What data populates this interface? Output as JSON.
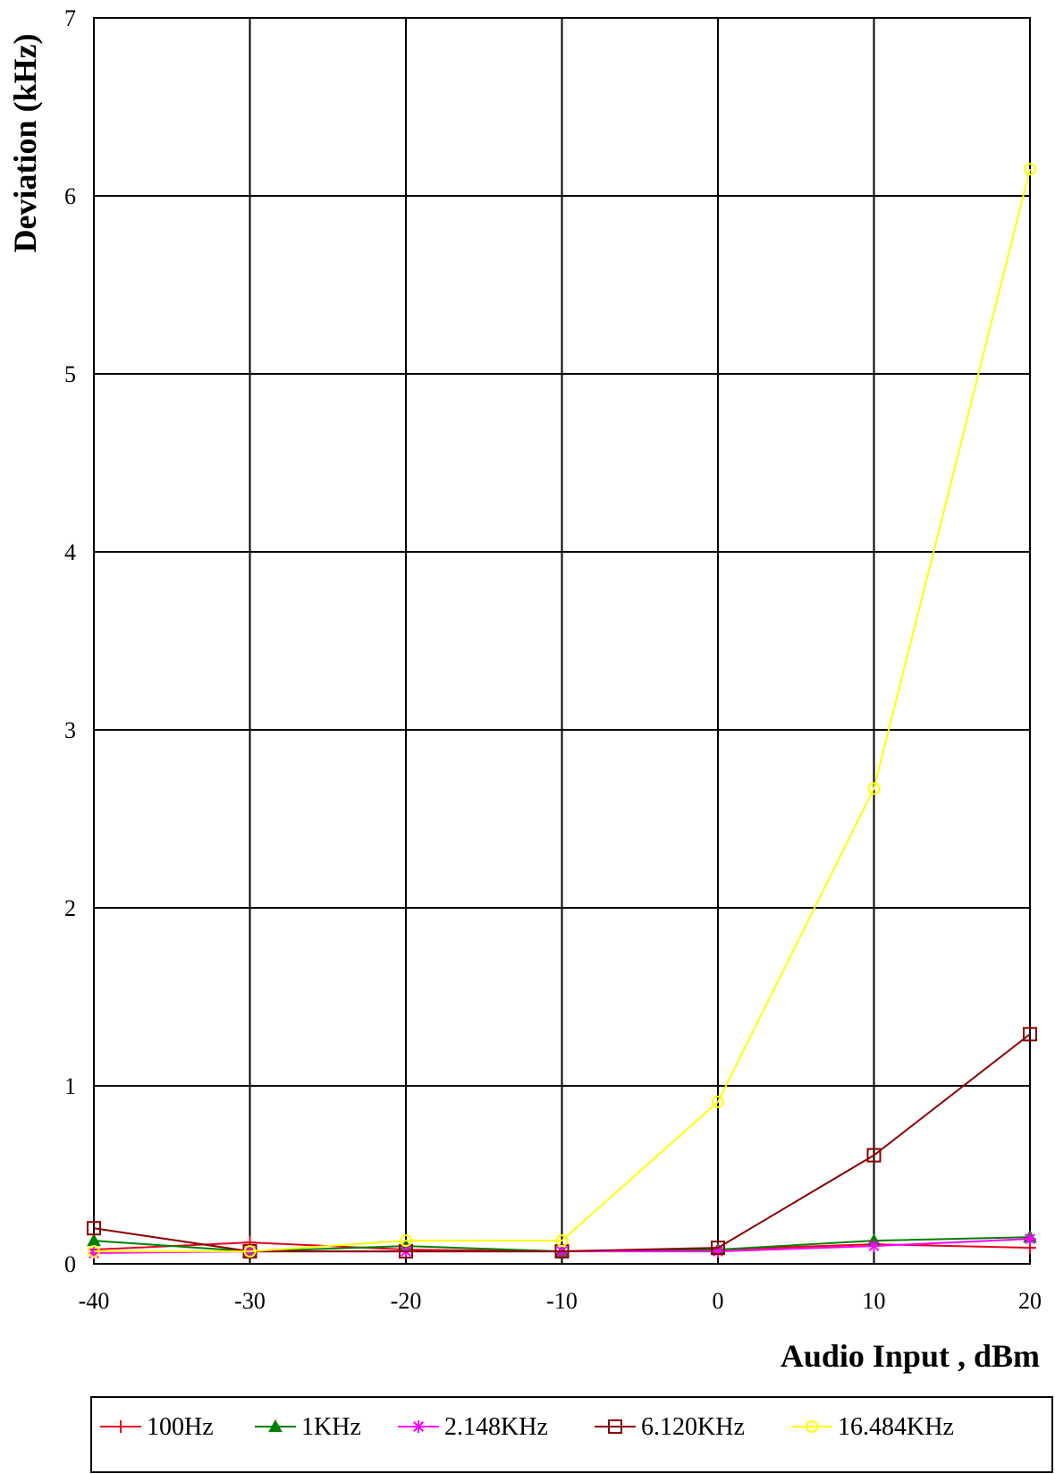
{
  "chart_data": {
    "type": "line",
    "title": "",
    "xlabel": "Audio Input , dBm",
    "ylabel": "Deviation (kHz)",
    "x": [
      -40,
      -30,
      -20,
      -10,
      0,
      10,
      20
    ],
    "xlim": [
      -40,
      20
    ],
    "ylim": [
      0,
      7
    ],
    "xticks": [
      "-40",
      "-30",
      "-20",
      "-10",
      "0",
      "10",
      "20"
    ],
    "yticks": [
      "0",
      "1",
      "2",
      "3",
      "4",
      "5",
      "6",
      "7"
    ],
    "grid": true,
    "legend": "bottom",
    "series": [
      {
        "name": "100Hz",
        "color": "#e8001c",
        "marker": "plus",
        "values": [
          0.08,
          0.12,
          0.08,
          0.07,
          0.08,
          0.11,
          0.09
        ]
      },
      {
        "name": "1KHz",
        "color": "#008000",
        "marker": "triangle",
        "values": [
          0.13,
          0.07,
          0.1,
          0.07,
          0.08,
          0.13,
          0.15
        ]
      },
      {
        "name": "2.148KHz",
        "color": "#ff00ff",
        "marker": "asterisk",
        "values": [
          0.06,
          0.07,
          0.07,
          0.07,
          0.07,
          0.1,
          0.14
        ]
      },
      {
        "name": "6.120KHz",
        "color": "#8b0000",
        "marker": "square",
        "values": [
          0.2,
          0.07,
          0.07,
          0.07,
          0.09,
          0.61,
          1.29
        ]
      },
      {
        "name": "16.484KHz",
        "color": "#ffff00",
        "marker": "circle",
        "values": [
          0.07,
          0.07,
          0.13,
          0.13,
          0.91,
          2.67,
          6.15
        ]
      }
    ]
  }
}
